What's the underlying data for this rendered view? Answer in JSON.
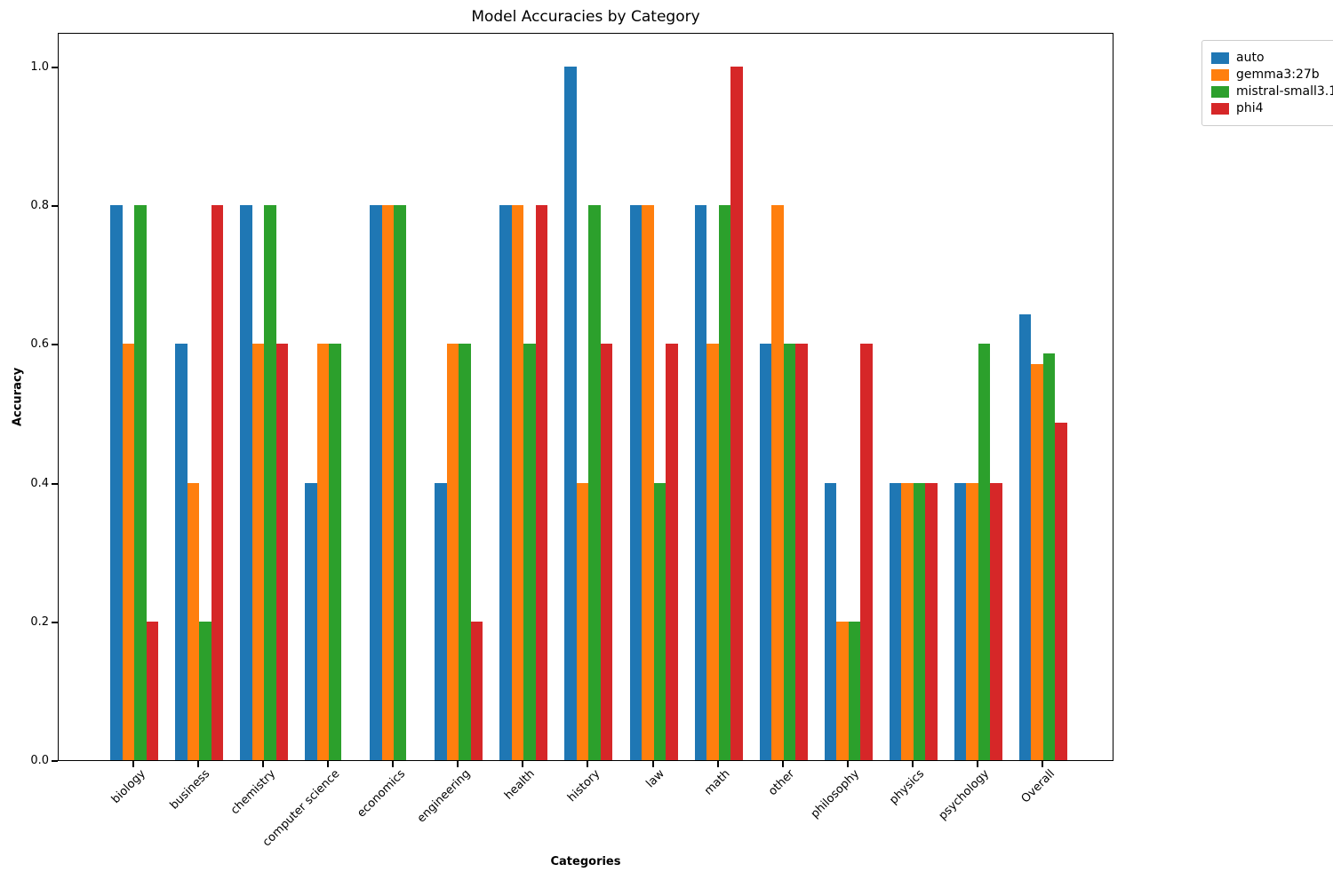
{
  "chart_data": {
    "type": "bar",
    "title": "Model Accuracies by Category",
    "xlabel": "Categories",
    "ylabel": "Accuracy",
    "categories": [
      "biology",
      "business",
      "chemistry",
      "computer science",
      "economics",
      "engineering",
      "health",
      "history",
      "law",
      "math",
      "other",
      "philosophy",
      "physics",
      "psychology",
      "Overall"
    ],
    "series": [
      {
        "name": "auto",
        "color": "#1f77b4",
        "values": [
          0.8,
          0.6,
          0.8,
          0.4,
          0.8,
          0.4,
          0.8,
          1.0,
          0.8,
          0.8,
          0.6,
          0.4,
          0.4,
          0.4,
          0.643
        ]
      },
      {
        "name": "gemma3:27b",
        "color": "#ff7f0e",
        "values": [
          0.6,
          0.4,
          0.6,
          0.6,
          0.8,
          0.6,
          0.8,
          0.4,
          0.8,
          0.6,
          0.8,
          0.2,
          0.4,
          0.4,
          0.571
        ]
      },
      {
        "name": "mistral-small3.1",
        "color": "#2ca02c",
        "values": [
          0.8,
          0.2,
          0.8,
          0.6,
          0.8,
          0.6,
          0.6,
          0.8,
          0.4,
          0.8,
          0.6,
          0.2,
          0.4,
          0.6,
          0.586
        ]
      },
      {
        "name": "phi4",
        "color": "#d62728",
        "values": [
          0.2,
          0.8,
          0.6,
          0.0,
          0.0,
          0.2,
          0.8,
          0.6,
          0.6,
          1.0,
          0.6,
          0.6,
          0.4,
          0.4,
          0.486
        ]
      }
    ],
    "yticks": [
      "0.0",
      "0.2",
      "0.4",
      "0.6",
      "0.8",
      "1.0"
    ],
    "ylim": [
      0.0,
      1.05
    ],
    "grid": false,
    "legend_position": "outside upper right"
  }
}
